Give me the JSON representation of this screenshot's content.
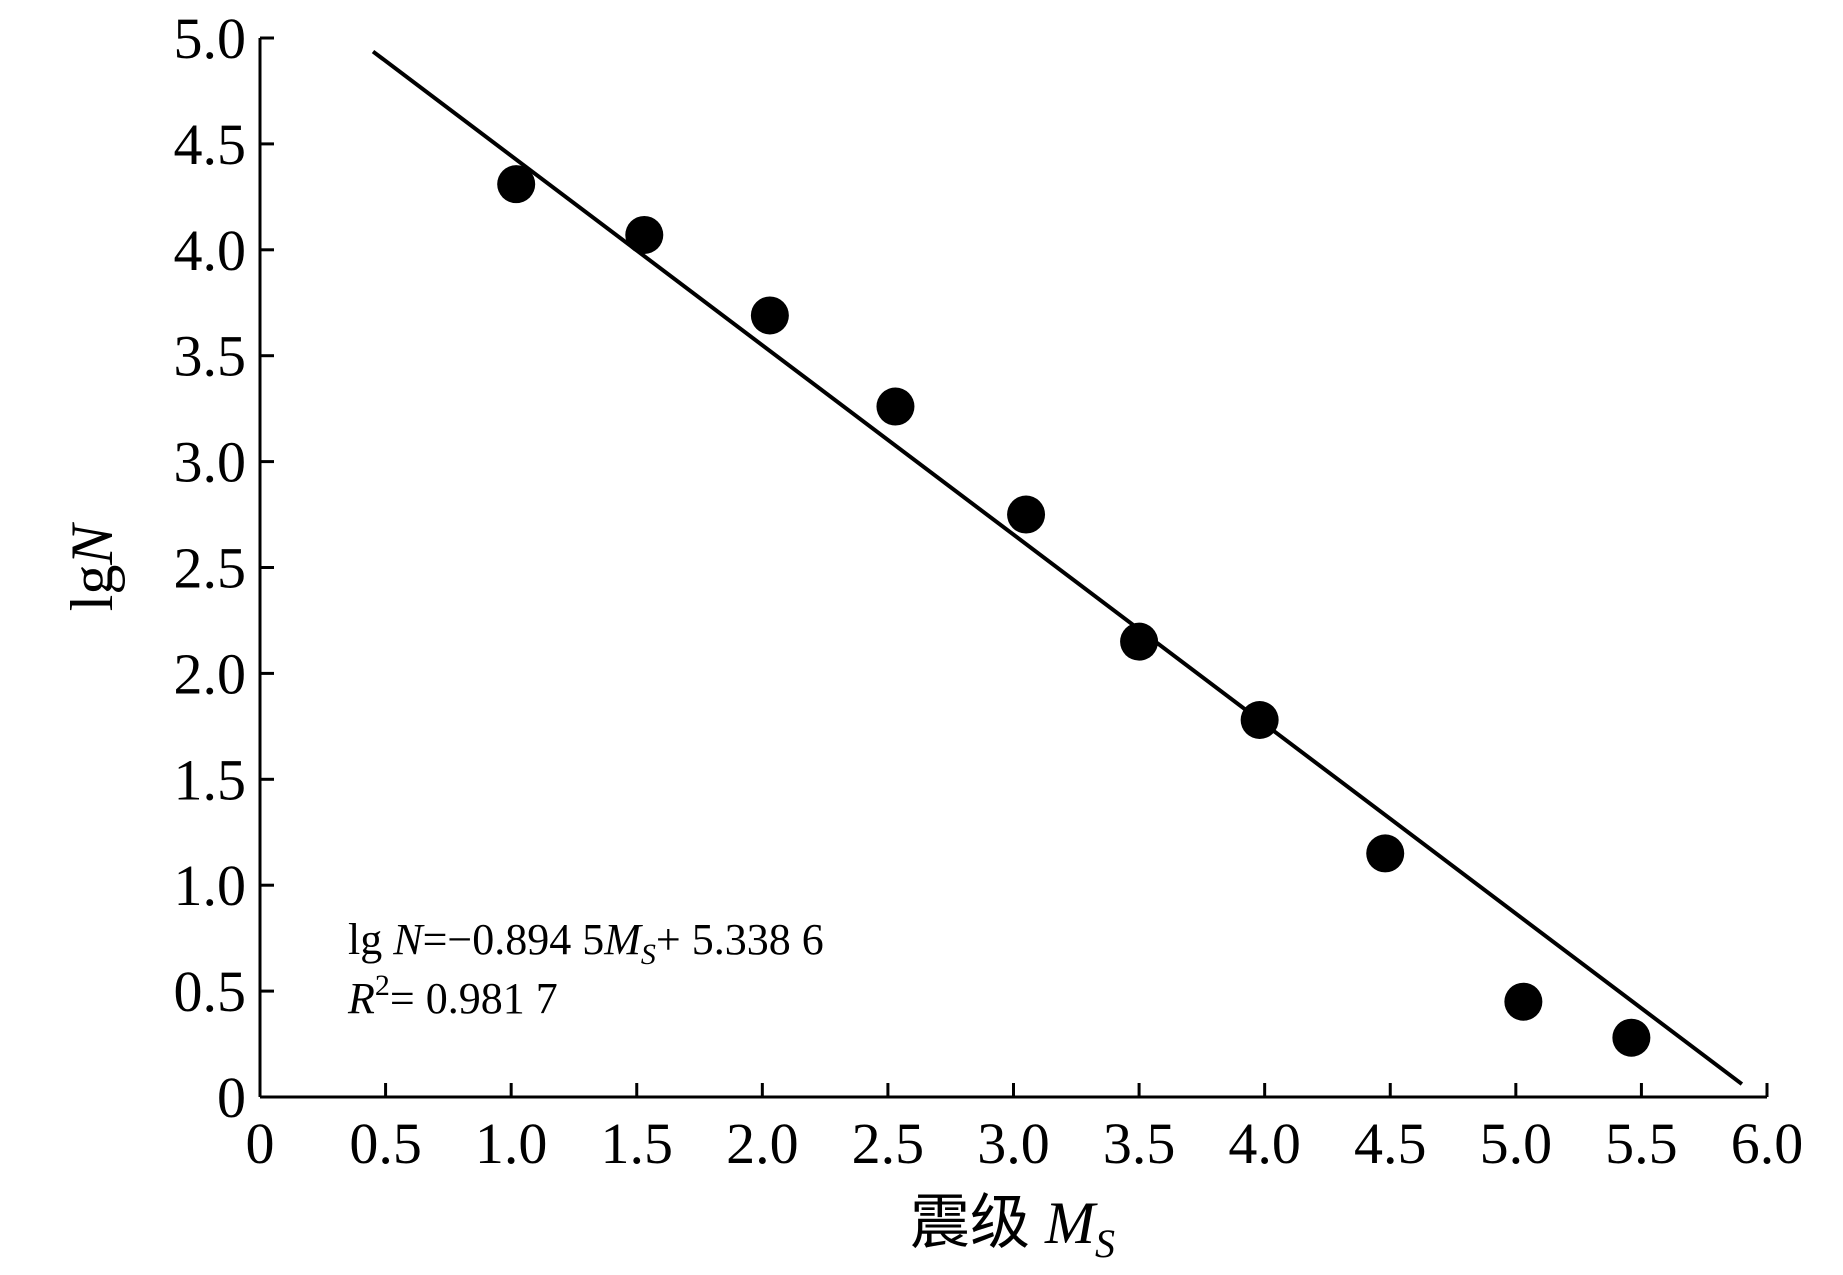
{
  "chart_data": {
    "type": "scatter",
    "xlim": [
      0,
      6.0
    ],
    "ylim": [
      0,
      5.0
    ],
    "x_ticks": [
      "0",
      "0.5",
      "1.0",
      "1.5",
      "2.0",
      "2.5",
      "3.0",
      "3.5",
      "4.0",
      "4.5",
      "5.0",
      "5.5",
      "6.0"
    ],
    "y_ticks": [
      "0",
      "0.5",
      "1.0",
      "1.5",
      "2.0",
      "2.5",
      "3.0",
      "3.5",
      "4.0",
      "4.5",
      "5.0"
    ],
    "xlabel": {
      "prefix": "震级 ",
      "symbol": "M",
      "sub": "S"
    },
    "ylabel": {
      "prefix": "lg",
      "symbol": "N"
    },
    "grid": false,
    "points": {
      "x": [
        1.02,
        1.53,
        2.03,
        2.53,
        3.05,
        3.5,
        3.98,
        4.48,
        5.03,
        5.46
      ],
      "y": [
        4.31,
        4.07,
        3.69,
        3.26,
        2.75,
        2.15,
        1.78,
        1.15,
        0.45,
        0.28
      ]
    },
    "fit_line": {
      "slope": -0.8945,
      "intercept": 5.3386,
      "x_range": [
        0.45,
        5.9
      ]
    },
    "annotations": {
      "equation": {
        "lead": "lg ",
        "var": "N",
        "mid": "=−0.894 5",
        "sym": "M",
        "sub": "S",
        "tail": "+ 5.338 6"
      },
      "r2": {
        "var": "R",
        "sup": "2",
        "tail": "= 0.981 7"
      }
    }
  }
}
